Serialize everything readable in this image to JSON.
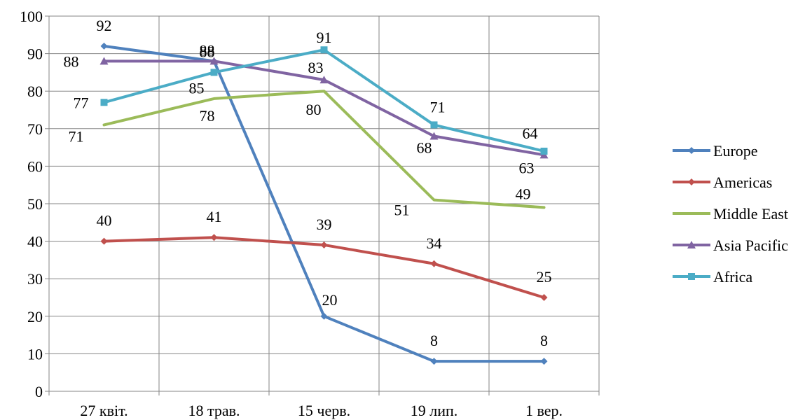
{
  "chart_data": {
    "type": "line",
    "categories": [
      "27 квіт.",
      "18 трав.",
      "15 черв.",
      "19 лип.",
      "1 вер."
    ],
    "ylim": [
      0,
      100
    ],
    "yticks": [
      0,
      10,
      20,
      30,
      40,
      50,
      60,
      70,
      80,
      90,
      100
    ],
    "grid": true,
    "legend_position": "right",
    "series": [
      {
        "name": "Europe",
        "values": [
          92,
          88,
          20,
          8,
          8
        ],
        "color": "#4f81bd",
        "marker": "diamond"
      },
      {
        "name": "Americas",
        "values": [
          40,
          41,
          39,
          34,
          25
        ],
        "color": "#c0504d",
        "marker": "diamond"
      },
      {
        "name": "Middle East",
        "values": [
          71,
          78,
          80,
          51,
          49
        ],
        "color": "#9bbb59",
        "marker": "none"
      },
      {
        "name": "Asia Pacific",
        "values": [
          88,
          88,
          83,
          68,
          63
        ],
        "color": "#8064a2",
        "marker": "triangle"
      },
      {
        "name": "Africa",
        "values": [
          77,
          85,
          91,
          71,
          64
        ],
        "color": "#4bacc6",
        "marker": "square"
      }
    ]
  }
}
